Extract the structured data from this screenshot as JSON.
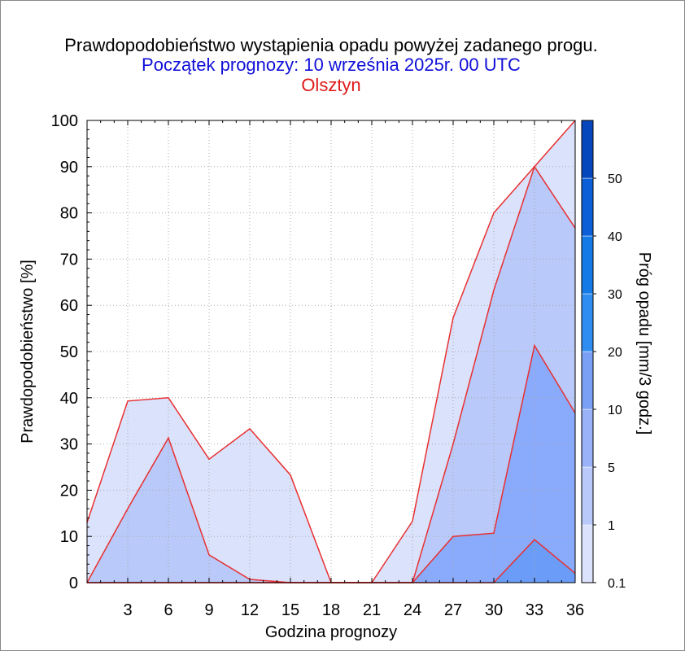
{
  "header": {
    "title": "Prawdopodobieństwo wystąpienia opadu powyżej zadanego progu.",
    "subtitle": "Początek prognozy: 10 września 2025r. 00 UTC",
    "location": "Olsztyn"
  },
  "chart_data": {
    "type": "area",
    "xlabel": "Godzina prognozy",
    "ylabel": "Prawdopodobieństwo [%]",
    "colorbar_label": "Próg opadu [mm/3 godz.]",
    "x": [
      0,
      3,
      6,
      9,
      12,
      15,
      18,
      21,
      24,
      27,
      30,
      33,
      36
    ],
    "xticks": [
      "3",
      "6",
      "9",
      "12",
      "15",
      "18",
      "21",
      "24",
      "27",
      "30",
      "33",
      "36"
    ],
    "xlim": [
      0,
      36
    ],
    "ylim": [
      0,
      100
    ],
    "yticks": [
      "0",
      "10",
      "20",
      "30",
      "40",
      "50",
      "60",
      "70",
      "80",
      "90",
      "100"
    ],
    "grid": true,
    "series": [
      {
        "name": "0.1",
        "color": "#dbe2fc",
        "values": [
          13,
          39.3,
          40,
          26.7,
          33.3,
          23.3,
          0,
          0,
          13.3,
          57.3,
          80,
          90,
          100
        ]
      },
      {
        "name": "1",
        "color": "#b8c9fa",
        "values": [
          0,
          16,
          31.3,
          6,
          0.7,
          0,
          0,
          0,
          0,
          30,
          63.3,
          90,
          76.7
        ]
      },
      {
        "name": "5",
        "color": "#8aaafc",
        "values": [
          0,
          0,
          0,
          0,
          0,
          0,
          0,
          0,
          0,
          10,
          10.7,
          51.3,
          36.7
        ]
      },
      {
        "name": "10",
        "color": "#6b9cf8",
        "values": [
          0,
          0,
          0,
          0,
          0,
          0,
          0,
          0,
          0,
          0,
          0,
          9.3,
          2
        ]
      }
    ],
    "colorbar": {
      "labels": [
        "0.1",
        "1",
        "5",
        "10",
        "20",
        "30",
        "40",
        "50"
      ],
      "colors": [
        "#dbe2fc",
        "#b8c9fa",
        "#99b2f8",
        "#7aa0f6",
        "#2f8cf0",
        "#147ae6",
        "#0c5fd6",
        "#0646bc"
      ]
    }
  }
}
